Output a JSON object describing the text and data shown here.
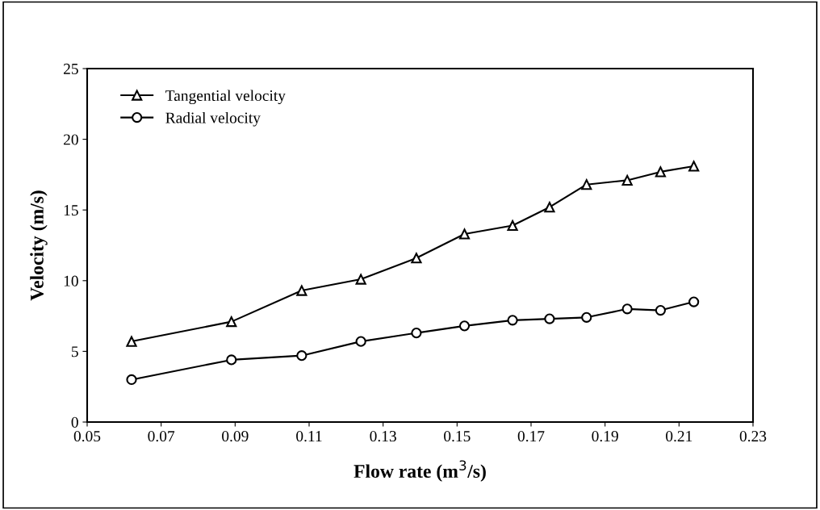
{
  "chart_data": {
    "type": "line",
    "xlabel": "Flow rate (m$^{3}$/s)",
    "ylabel": "Velocity (m/s)",
    "x": [
      0.062,
      0.089,
      0.108,
      0.124,
      0.139,
      0.152,
      0.165,
      0.175,
      0.185,
      0.196,
      0.205,
      0.214
    ],
    "series": [
      {
        "name": "Tangential velocity",
        "color": "#000000",
        "marker": "triangle",
        "values": [
          5.7,
          7.1,
          9.3,
          10.1,
          11.6,
          13.3,
          13.9,
          15.2,
          16.8,
          17.1,
          17.7,
          18.1
        ]
      },
      {
        "name": "Radial velocity",
        "color": "#000000",
        "marker": "circle",
        "values": [
          3.0,
          4.4,
          4.7,
          5.7,
          6.3,
          6.8,
          7.2,
          7.3,
          7.4,
          8.0,
          7.9,
          8.5
        ]
      }
    ],
    "xlim": [
      0.05,
      0.23
    ],
    "xticks": [
      0.05,
      0.07,
      0.09,
      0.11,
      0.13,
      0.15,
      0.17,
      0.19,
      0.21,
      0.23
    ],
    "ylim": [
      0,
      25
    ],
    "yticks": [
      0,
      5,
      10,
      15,
      20,
      25
    ],
    "grid": false,
    "legend": "top left",
    "line_style": "solid"
  }
}
